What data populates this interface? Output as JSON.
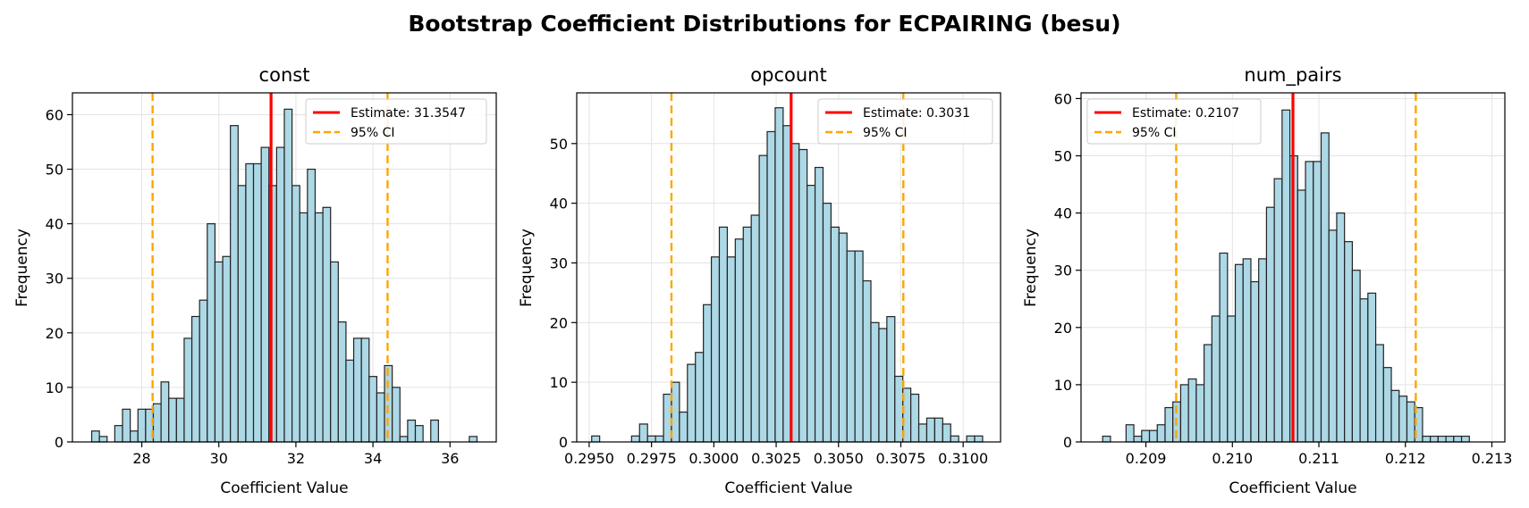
{
  "chart_data": {
    "title": "Bootstrap Coefficient Distributions for ECPAIRING (besu)",
    "colors": {
      "bar_fill": "#add8e6",
      "bar_edge": "#222222",
      "estimate": "#ff0000",
      "ci": "#ffa500"
    },
    "panels": [
      {
        "type": "bar",
        "title": "const",
        "xlabel": "Coefficient Value",
        "ylabel": "Frequency",
        "xlim": [
          26.2,
          37.2
        ],
        "ylim": [
          0,
          64
        ],
        "xticks": [
          28,
          30,
          32,
          34,
          36
        ],
        "xtick_labels": [
          "28",
          "30",
          "32",
          "34",
          "36"
        ],
        "yticks": [
          0,
          10,
          20,
          30,
          40,
          50,
          60
        ],
        "ytick_labels": [
          "0",
          "10",
          "20",
          "30",
          "40",
          "50",
          "60"
        ],
        "bin_start": 26.7,
        "bin_width": 0.2,
        "counts": [
          2,
          1,
          0,
          3,
          6,
          2,
          6,
          6,
          7,
          11,
          8,
          8,
          19,
          23,
          26,
          40,
          33,
          34,
          58,
          47,
          51,
          51,
          54,
          47,
          54,
          61,
          47,
          42,
          50,
          42,
          43,
          33,
          22,
          15,
          19,
          19,
          12,
          9,
          14,
          10,
          1,
          4,
          3,
          0,
          4,
          0,
          0,
          0,
          0,
          1
        ],
        "estimate": 31.3547,
        "ci": [
          28.28,
          34.38
        ],
        "legend": {
          "estimate_label": "Estimate: 31.3547",
          "ci_label": "95% CI",
          "position": "upper right"
        }
      },
      {
        "type": "bar",
        "title": "opcount",
        "xlabel": "Coefficient Value",
        "ylabel": "Frequency",
        "xlim": [
          0.2945,
          0.3115
        ],
        "ylim": [
          0,
          58.5
        ],
        "xticks": [
          0.295,
          0.2975,
          0.3,
          0.3025,
          0.305,
          0.3075,
          0.31
        ],
        "xtick_labels": [
          "0.2950",
          "0.2975",
          "0.3000",
          "0.3025",
          "0.3050",
          "0.3075",
          "0.3100"
        ],
        "yticks": [
          0,
          10,
          20,
          30,
          40,
          50
        ],
        "ytick_labels": [
          "0",
          "10",
          "20",
          "30",
          "40",
          "50"
        ],
        "bin_start": 0.2951,
        "bin_width": 0.00032,
        "counts": [
          1,
          0,
          0,
          0,
          0,
          1,
          3,
          1,
          1,
          8,
          10,
          5,
          13,
          15,
          23,
          31,
          36,
          31,
          34,
          36,
          38,
          48,
          52,
          56,
          53,
          50,
          49,
          43,
          46,
          40,
          36,
          35,
          32,
          32,
          27,
          20,
          19,
          21,
          11,
          9,
          8,
          3,
          4,
          4,
          3,
          1,
          0,
          1,
          1
        ],
        "estimate": 0.3031,
        "ci": [
          0.2983,
          0.3076
        ],
        "legend": {
          "estimate_label": "Estimate: 0.3031",
          "ci_label": "95% CI",
          "position": "upper right"
        }
      },
      {
        "type": "bar",
        "title": "num_pairs",
        "xlabel": "Coefficient Value",
        "ylabel": "Frequency",
        "xlim": [
          0.20825,
          0.21315
        ],
        "ylim": [
          0,
          61
        ],
        "xticks": [
          0.209,
          0.21,
          0.211,
          0.212,
          0.213
        ],
        "xtick_labels": [
          "0.209",
          "0.210",
          "0.211",
          "0.212",
          "0.213"
        ],
        "yticks": [
          0,
          10,
          20,
          30,
          40,
          50,
          60
        ],
        "ytick_labels": [
          "0",
          "10",
          "20",
          "30",
          "40",
          "50",
          "60"
        ],
        "bin_start": 0.2085,
        "bin_width": 9.02e-05,
        "counts": [
          1,
          0,
          0,
          3,
          1,
          2,
          2,
          3,
          6,
          7,
          10,
          11,
          10,
          17,
          22,
          33,
          22,
          31,
          32,
          28,
          32,
          41,
          46,
          58,
          50,
          44,
          49,
          49,
          54,
          37,
          40,
          35,
          30,
          25,
          26,
          17,
          13,
          9,
          8,
          7,
          6,
          1,
          1,
          1,
          1,
          1,
          1
        ],
        "estimate": 0.2107,
        "ci": [
          0.20935,
          0.21212
        ],
        "legend": {
          "estimate_label": "Estimate: 0.2107",
          "ci_label": "95% CI",
          "position": "upper left"
        }
      }
    ]
  }
}
